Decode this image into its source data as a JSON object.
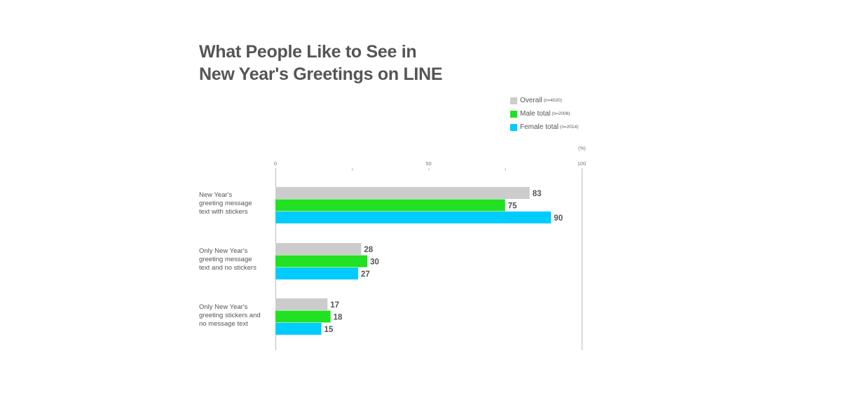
{
  "title_lines": [
    "What People Like to See in",
    "New Year's Greetings on LINE"
  ],
  "unit_label": "(%)",
  "legend": [
    {
      "label": "Overall",
      "n": "(n=4020)",
      "color": "#cccccc"
    },
    {
      "label": "Male total",
      "n": "(n=2006)",
      "color": "#22e022"
    },
    {
      "label": "Female total",
      "n": "(n=2014)",
      "color": "#00ccff"
    }
  ],
  "chart_data": {
    "type": "bar",
    "orientation": "horizontal",
    "title": "What People Like to See in New Year's Greetings on LINE",
    "categories": [
      "New Year's greeting message text with stickers",
      "Only New Year's greeting message text and no stickers",
      "Only New Year's greeting stickers and no message text"
    ],
    "category_lines": [
      [
        "New Year's",
        "greeting message",
        "text with stickers"
      ],
      [
        "Only New Year's",
        "greeting message",
        "text and no stickers"
      ],
      [
        "Only New Year's",
        "greeting stickers and",
        "no message text"
      ]
    ],
    "series": [
      {
        "name": "Overall (n=4020)",
        "color": "#cccccc",
        "values": [
          83,
          28,
          17
        ]
      },
      {
        "name": "Male total (n=2006)",
        "color": "#22e022",
        "values": [
          75,
          30,
          18
        ]
      },
      {
        "name": "Female total (n=2014)",
        "color": "#00ccff",
        "values": [
          90,
          27,
          15
        ]
      }
    ],
    "xlim": [
      0,
      100
    ],
    "xticks": [
      0,
      25,
      50,
      75,
      100
    ],
    "xtick_labels": [
      "0",
      "",
      "50",
      "",
      "100"
    ],
    "ylabel": "(%)",
    "legend_position": "top-right",
    "grid": false
  }
}
